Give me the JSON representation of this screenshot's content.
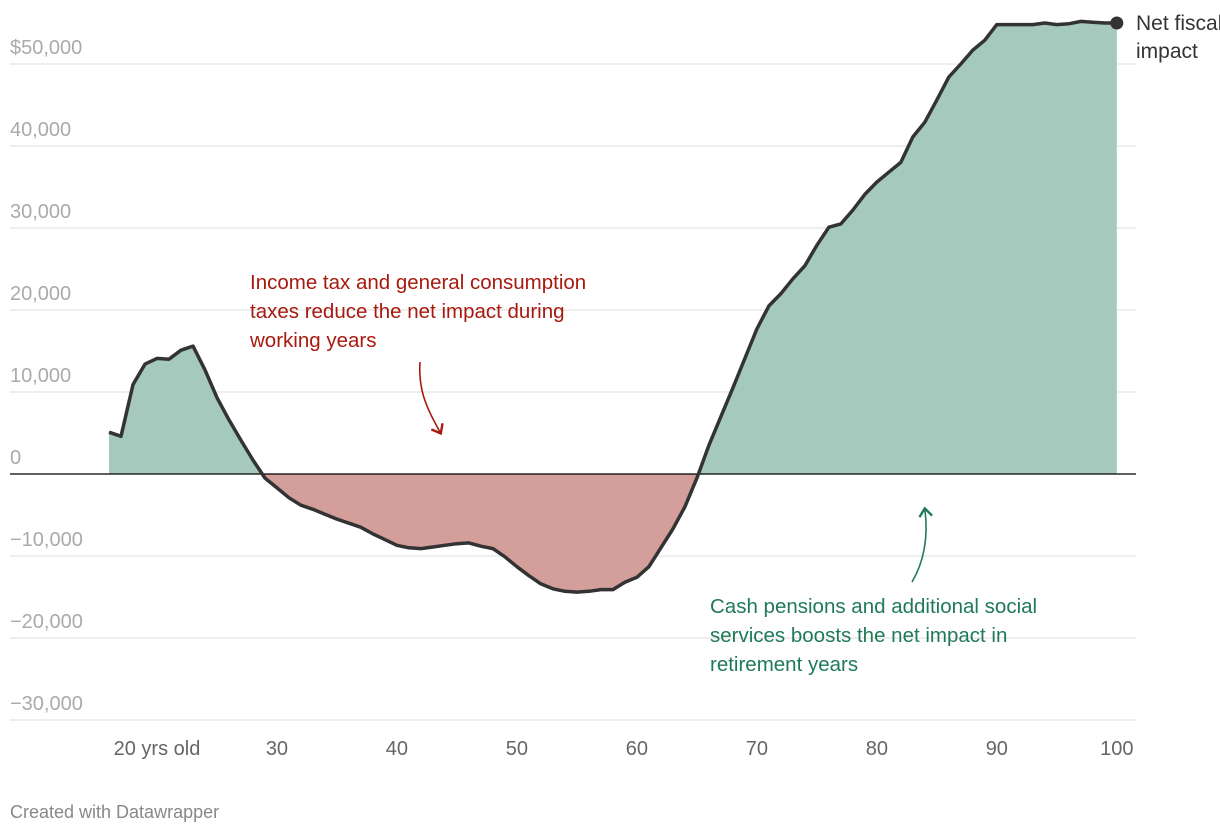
{
  "chart_data": {
    "type": "area",
    "x": [
      16,
      17,
      18,
      19,
      20,
      21,
      22,
      23,
      24,
      25,
      26,
      27,
      28,
      29,
      30,
      31,
      32,
      33,
      34,
      35,
      36,
      37,
      38,
      39,
      40,
      41,
      42,
      43,
      44,
      45,
      46,
      47,
      48,
      49,
      50,
      51,
      52,
      53,
      54,
      55,
      56,
      57,
      58,
      59,
      60,
      61,
      62,
      63,
      64,
      65,
      66,
      67,
      68,
      69,
      70,
      71,
      72,
      73,
      74,
      75,
      76,
      77,
      78,
      79,
      80,
      81,
      82,
      83,
      84,
      85,
      86,
      87,
      88,
      89,
      90,
      91,
      92,
      93,
      94,
      95,
      96,
      97,
      98,
      99,
      100
    ],
    "series": [
      {
        "name": "Net fiscal impact",
        "color": "#333333",
        "positive_color": "#a5cabd",
        "negative_color": "#d49e9a",
        "values": [
          5100,
          4600,
          10900,
          13400,
          14100,
          14000,
          15100,
          15600,
          12700,
          9300,
          6600,
          4100,
          1700,
          -500,
          -1700,
          -2900,
          -3800,
          -4300,
          -4900,
          -5500,
          -6000,
          -6500,
          -7300,
          -8000,
          -8700,
          -9000,
          -9100,
          -8900,
          -8700,
          -8500,
          -8400,
          -8800,
          -9100,
          -10100,
          -11300,
          -12400,
          -13400,
          -14000,
          -14300,
          -14400,
          -14300,
          -14100,
          -14100,
          -13200,
          -12600,
          -11300,
          -9000,
          -6700,
          -4000,
          -500,
          3500,
          7000,
          10500,
          14100,
          17700,
          20500,
          22000,
          23800,
          25400,
          27900,
          30100,
          30500,
          32200,
          34100,
          35600,
          36800,
          38000,
          41100,
          42900,
          45600,
          48400,
          50000,
          51700,
          52900,
          54800,
          54800,
          54800,
          54800,
          55000,
          54800,
          54900,
          55200,
          55100,
          55000,
          55000
        ]
      }
    ],
    "xlim": [
      7.75,
      101.6
    ],
    "xticks": [
      {
        "value": 20,
        "label": "20 yrs old"
      },
      30,
      40,
      50,
      60,
      70,
      80,
      90,
      100
    ],
    "ylim": [
      -30000,
      56000
    ],
    "yticks": [
      {
        "value": -30000,
        "label": "−30,000"
      },
      {
        "value": -20000,
        "label": "−20,000"
      },
      {
        "value": -10000,
        "label": "−10,000"
      },
      0,
      {
        "value": 10000,
        "label": "10,000"
      },
      {
        "value": 20000,
        "label": "20,000"
      },
      {
        "value": 30000,
        "label": "30,000"
      },
      {
        "value": 40000,
        "label": "40,000"
      },
      {
        "value": 50000,
        "label": "$50,000"
      }
    ],
    "grid": true,
    "annotations": [
      {
        "text": "Income tax and general consumption taxes reduce the net impact during working years",
        "color": "#a8190e"
      },
      {
        "text": "Cash pensions and additional social services boosts the net impact in retirement years",
        "color": "#1f7a57"
      }
    ],
    "footer": "Created with Datawrapper"
  }
}
